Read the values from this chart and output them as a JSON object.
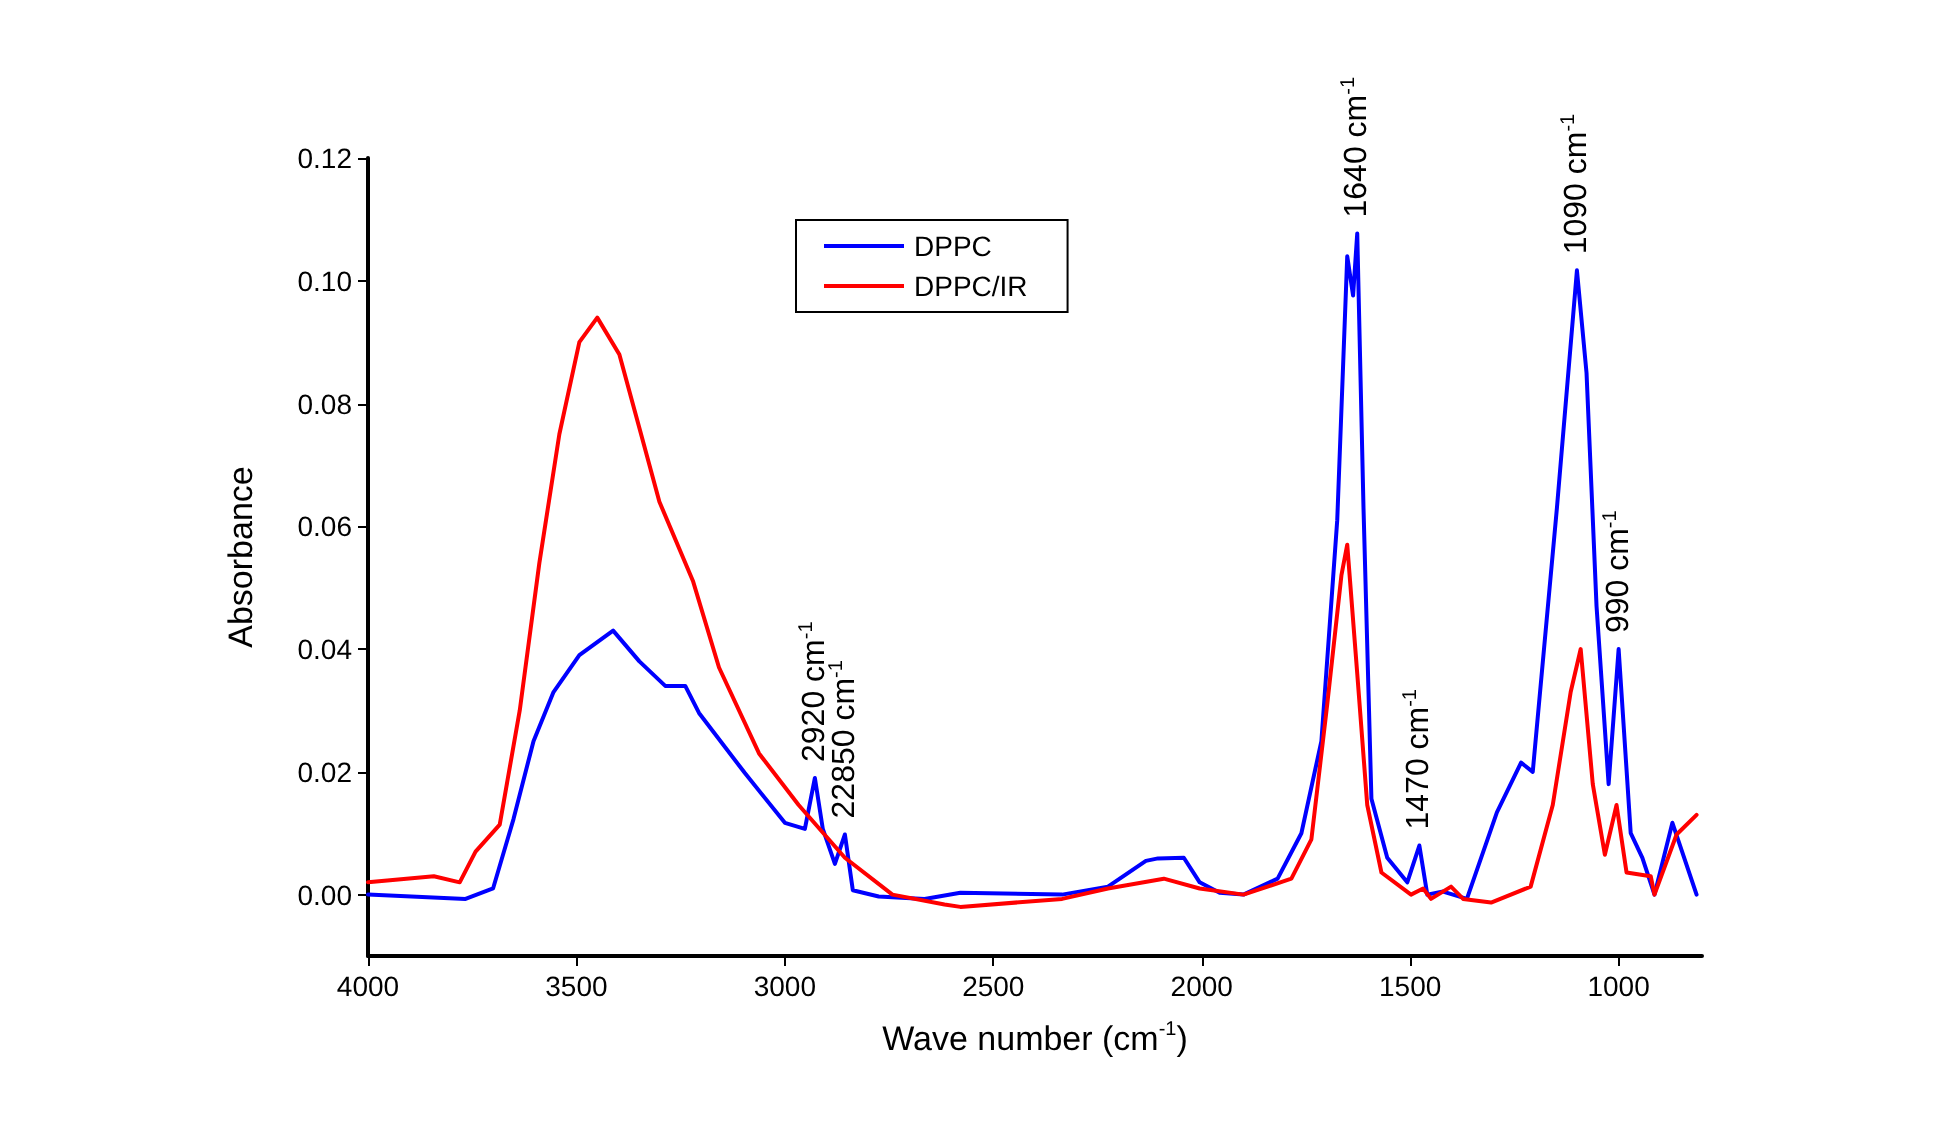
{
  "chart_data": {
    "type": "line",
    "xlabel": "Wave number (cm$^{-1}$)",
    "ylabel": "Absorbance",
    "xlim": [
      4000,
      800
    ],
    "xticks": [
      4000,
      3500,
      3000,
      2500,
      2000,
      1500,
      1000
    ],
    "ylim": [
      -0.01,
      0.12
    ],
    "yticks": [
      {
        "value": 0,
        "label": "0.00"
      },
      {
        "value": 0.02,
        "label": "0.02"
      },
      {
        "value": 0.04,
        "label": "0.04"
      },
      {
        "value": 0.06,
        "label": "0.06"
      },
      {
        "value": 0.08,
        "label": "0.08"
      },
      {
        "value": 0.1,
        "label": "0.10"
      },
      {
        "value": 0.12,
        "label": "0.12"
      }
    ],
    "grid": false,
    "legend": "top",
    "marker": "none",
    "line_style": "solid",
    "series": [
      {
        "name": "DPPC",
        "color": "#0000ff",
        "x": [
          4000,
          3766,
          3700,
          3651,
          3603,
          3555,
          3493,
          3412,
          3349,
          3287,
          3239,
          3206,
          3096,
          3000,
          2952,
          2928,
          2909,
          2880,
          2856,
          2837,
          2775,
          2665,
          2579,
          2335,
          2225,
          2134,
          2105,
          2043,
          2005,
          1957,
          1900,
          1818,
          1761,
          1713,
          1675,
          1651,
          1637,
          1627,
          1612,
          1593,
          1555,
          1507,
          1478,
          1459,
          1421,
          1364,
          1292,
          1234,
          1206,
          1148,
          1100,
          1077,
          1053,
          1024,
          1000,
          971,
          943,
          914,
          871,
          813
        ],
        "values": [
          0,
          -0.0007,
          0.001,
          0.0123,
          0.025,
          0.033,
          0.039,
          0.043,
          0.038,
          0.034,
          0.034,
          0.0296,
          0.0198,
          0.0117,
          0.0107,
          0.019,
          0.0107,
          0.005,
          0.0098,
          0.0007,
          -0.0003,
          -0.0007,
          0.0003,
          0,
          0.0013,
          0.0055,
          0.0059,
          0.006,
          0.002,
          0.0003,
          0,
          0.0026,
          0.01,
          0.025,
          0.061,
          0.104,
          0.0976,
          0.1077,
          0.063,
          0.0156,
          0.006,
          0.002,
          0.008,
          0,
          0.0005,
          -0.0007,
          0.0134,
          0.0215,
          0.02,
          0.063,
          0.1017,
          0.085,
          0.047,
          0.018,
          0.04,
          0.01,
          0.006,
          0,
          0.0117,
          0
        ]
      },
      {
        "name": "DPPC/IR",
        "color": "#ff0000",
        "x": [
          4000,
          3842,
          3780,
          3742,
          3684,
          3636,
          3589,
          3541,
          3493,
          3450,
          3397,
          3349,
          3301,
          3220,
          3158,
          3062,
          2967,
          2856,
          2742,
          2617,
          2579,
          2335,
          2225,
          2091,
          2005,
          1900,
          1785,
          1737,
          1699,
          1665,
          1651,
          1627,
          1603,
          1569,
          1498,
          1469,
          1450,
          1402,
          1373,
          1306,
          1211,
          1158,
          1115,
          1091,
          1062,
          1033,
          1005,
          981,
          923,
          914,
          861,
          813
        ],
        "values": [
          0.002,
          0.003,
          0.002,
          0.007,
          0.0114,
          0.03,
          0.054,
          0.075,
          0.09,
          0.094,
          0.088,
          0.076,
          0.064,
          0.051,
          0.037,
          0.023,
          0.0146,
          0.006,
          0,
          -0.0016,
          -0.002,
          -0.0007,
          0.001,
          0.0026,
          0.001,
          0,
          0.0026,
          0.009,
          0.031,
          0.052,
          0.057,
          0.036,
          0.0146,
          0.0036,
          0,
          0.001,
          -0.0007,
          0.0013,
          -0.0007,
          -0.0013,
          0.0013,
          0.0146,
          0.033,
          0.04,
          0.018,
          0.0065,
          0.0146,
          0.0036,
          0.003,
          0,
          0.0098,
          0.013
        ]
      }
    ],
    "annotations": [
      {
        "text": "2920 cm$^{-1}$",
        "x": 2928,
        "y": 0.019
      },
      {
        "text": "22850 cm$^{-1}$",
        "x": 2856,
        "y": 0.0098
      },
      {
        "text": "1640 cm$^{-1}$",
        "x": 1627,
        "y": 0.1077
      },
      {
        "text": "1470 cm$^{-1}$",
        "x": 1478,
        "y": 0.008
      },
      {
        "text": "1090 cm$^{-1}$",
        "x": 1100,
        "y": 0.1017
      },
      {
        "text": "990 cm$^{-1}$",
        "x": 1000,
        "y": 0.04
      }
    ]
  }
}
